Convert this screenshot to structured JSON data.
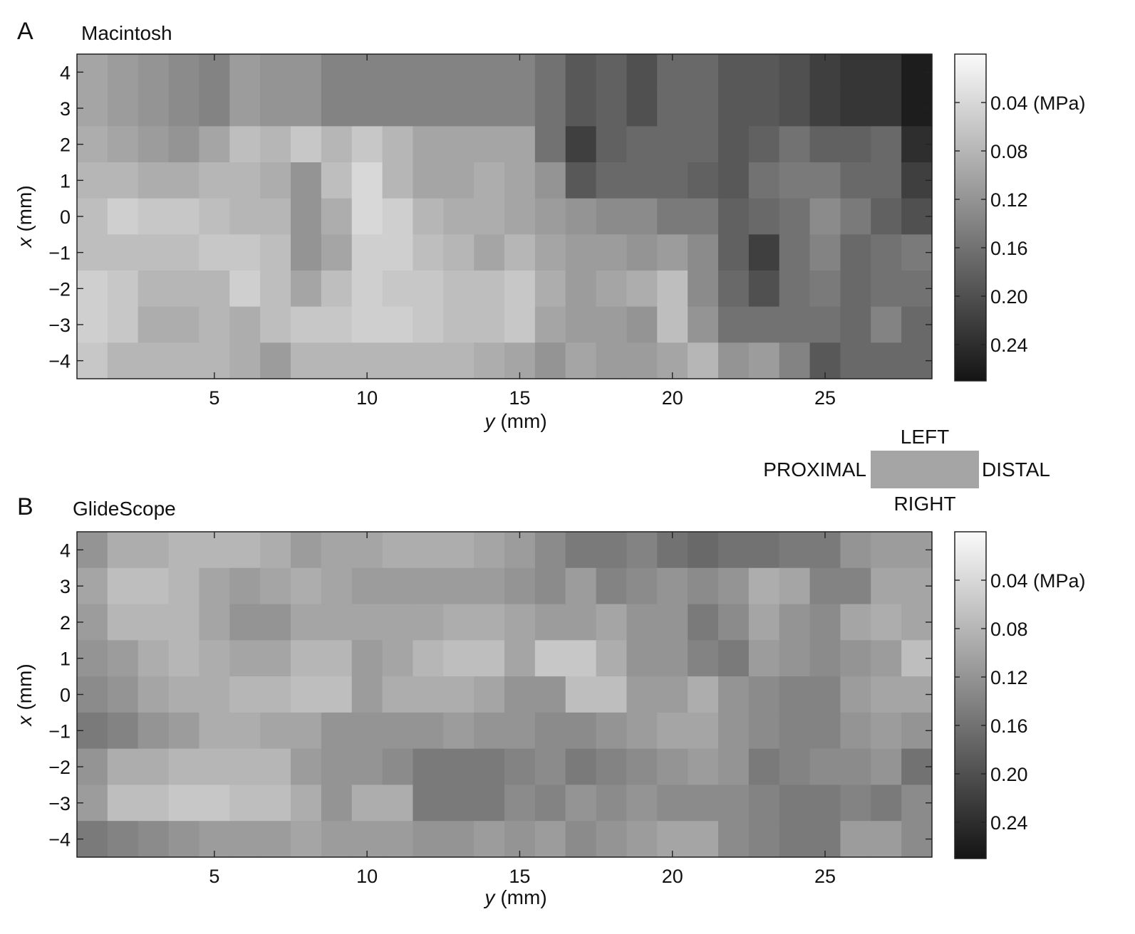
{
  "chart_data": [
    {
      "type": "heatmap",
      "panel": "A",
      "title": "Macintosh",
      "xlabel_var": "y",
      "xlabel_unit": "(mm)",
      "ylabel_var": "x",
      "ylabel_unit": "(mm)",
      "xlim": [
        0.5,
        28.5
      ],
      "ylim": [
        -4.5,
        4.5
      ],
      "x_ticks": [
        5,
        10,
        15,
        20,
        25
      ],
      "y_ticks": [
        4,
        3,
        2,
        1,
        0,
        -1,
        -2,
        -3,
        -4
      ],
      "y_tick_labels": [
        "4",
        "3",
        "2",
        "1",
        "0",
        "−1",
        "−2",
        "−3",
        "−4"
      ],
      "x_tick_labels": [
        "5",
        "10",
        "15",
        "20",
        "25"
      ],
      "colorbar": {
        "range": [
          0.0,
          0.27
        ],
        "ticks": [
          0.04,
          0.08,
          0.12,
          0.16,
          0.2,
          0.24
        ],
        "tick_labels": [
          "0.04 (MPa)",
          "0.08",
          "0.12",
          "0.16",
          "0.20",
          "0.24"
        ],
        "colormap": "gray-reversed"
      },
      "rows_x": [
        4,
        3,
        2,
        1,
        0,
        -1,
        -2,
        -3,
        -4
      ],
      "cols_y": [
        1,
        2,
        3,
        4,
        5,
        6,
        7,
        8,
        9,
        10,
        11,
        12,
        13,
        14,
        15,
        16,
        17,
        18,
        19,
        20,
        21,
        22,
        23,
        24,
        25,
        26,
        27,
        28
      ],
      "values": [
        [
          0.1,
          0.11,
          0.12,
          0.13,
          0.14,
          0.11,
          0.12,
          0.12,
          0.14,
          0.14,
          0.14,
          0.14,
          0.14,
          0.14,
          0.14,
          0.16,
          0.19,
          0.18,
          0.2,
          0.17,
          0.17,
          0.19,
          0.19,
          0.2,
          0.22,
          0.23,
          0.23,
          0.26
        ],
        [
          0.1,
          0.11,
          0.12,
          0.13,
          0.14,
          0.11,
          0.12,
          0.12,
          0.14,
          0.14,
          0.14,
          0.14,
          0.14,
          0.14,
          0.14,
          0.16,
          0.19,
          0.18,
          0.2,
          0.17,
          0.17,
          0.19,
          0.19,
          0.2,
          0.22,
          0.23,
          0.23,
          0.26
        ],
        [
          0.09,
          0.1,
          0.11,
          0.12,
          0.1,
          0.07,
          0.08,
          0.06,
          0.08,
          0.06,
          0.08,
          0.1,
          0.1,
          0.1,
          0.1,
          0.16,
          0.22,
          0.18,
          0.17,
          0.17,
          0.17,
          0.19,
          0.18,
          0.16,
          0.18,
          0.18,
          0.17,
          0.24
        ],
        [
          0.08,
          0.08,
          0.09,
          0.09,
          0.08,
          0.08,
          0.09,
          0.12,
          0.07,
          0.04,
          0.08,
          0.1,
          0.1,
          0.09,
          0.1,
          0.12,
          0.19,
          0.17,
          0.17,
          0.17,
          0.18,
          0.19,
          0.16,
          0.15,
          0.15,
          0.17,
          0.17,
          0.22
        ],
        [
          0.07,
          0.05,
          0.06,
          0.06,
          0.07,
          0.08,
          0.08,
          0.12,
          0.09,
          0.04,
          0.05,
          0.08,
          0.09,
          0.09,
          0.1,
          0.11,
          0.12,
          0.13,
          0.13,
          0.15,
          0.15,
          0.18,
          0.17,
          0.16,
          0.13,
          0.15,
          0.18,
          0.2
        ],
        [
          0.07,
          0.07,
          0.07,
          0.07,
          0.06,
          0.06,
          0.07,
          0.12,
          0.1,
          0.05,
          0.05,
          0.07,
          0.08,
          0.1,
          0.08,
          0.1,
          0.11,
          0.11,
          0.12,
          0.11,
          0.13,
          0.18,
          0.22,
          0.16,
          0.14,
          0.17,
          0.16,
          0.15
        ],
        [
          0.05,
          0.06,
          0.08,
          0.08,
          0.08,
          0.05,
          0.07,
          0.1,
          0.07,
          0.05,
          0.06,
          0.06,
          0.07,
          0.07,
          0.06,
          0.09,
          0.11,
          0.1,
          0.09,
          0.07,
          0.13,
          0.17,
          0.2,
          0.16,
          0.15,
          0.17,
          0.16,
          0.16
        ],
        [
          0.05,
          0.06,
          0.09,
          0.09,
          0.08,
          0.09,
          0.07,
          0.06,
          0.06,
          0.05,
          0.05,
          0.06,
          0.07,
          0.07,
          0.06,
          0.1,
          0.11,
          0.11,
          0.12,
          0.07,
          0.12,
          0.16,
          0.16,
          0.16,
          0.16,
          0.17,
          0.14,
          0.17
        ],
        [
          0.06,
          0.08,
          0.08,
          0.08,
          0.08,
          0.09,
          0.11,
          0.08,
          0.08,
          0.08,
          0.08,
          0.08,
          0.08,
          0.09,
          0.1,
          0.12,
          0.1,
          0.11,
          0.11,
          0.1,
          0.08,
          0.12,
          0.11,
          0.14,
          0.19,
          0.17,
          0.17,
          0.17
        ]
      ]
    },
    {
      "type": "heatmap",
      "panel": "B",
      "title": "GlideScope",
      "xlabel_var": "y",
      "xlabel_unit": "(mm)",
      "ylabel_var": "x",
      "ylabel_unit": "(mm)",
      "xlim": [
        0.5,
        28.5
      ],
      "ylim": [
        -4.5,
        4.5
      ],
      "x_ticks": [
        5,
        10,
        15,
        20,
        25
      ],
      "y_ticks": [
        4,
        3,
        2,
        1,
        0,
        -1,
        -2,
        -3,
        -4
      ],
      "y_tick_labels": [
        "4",
        "3",
        "2",
        "1",
        "0",
        "−1",
        "−2",
        "−3",
        "−4"
      ],
      "x_tick_labels": [
        "5",
        "10",
        "15",
        "20",
        "25"
      ],
      "colorbar": {
        "range": [
          0.0,
          0.27
        ],
        "ticks": [
          0.04,
          0.08,
          0.12,
          0.16,
          0.2,
          0.24
        ],
        "tick_labels": [
          "0.04 (MPa)",
          "0.08",
          "0.12",
          "0.16",
          "0.20",
          "0.24"
        ],
        "colormap": "gray-reversed"
      },
      "rows_x": [
        4,
        3,
        2,
        1,
        0,
        -1,
        -2,
        -3,
        -4
      ],
      "cols_y": [
        1,
        2,
        3,
        4,
        5,
        6,
        7,
        8,
        9,
        10,
        11,
        12,
        13,
        14,
        15,
        16,
        17,
        18,
        19,
        20,
        21,
        22,
        23,
        24,
        25,
        26,
        27,
        28
      ],
      "values": [
        [
          0.12,
          0.09,
          0.09,
          0.08,
          0.08,
          0.08,
          0.09,
          0.11,
          0.1,
          0.1,
          0.09,
          0.09,
          0.09,
          0.1,
          0.11,
          0.13,
          0.15,
          0.15,
          0.14,
          0.16,
          0.17,
          0.16,
          0.16,
          0.15,
          0.15,
          0.12,
          0.11,
          0.11
        ],
        [
          0.1,
          0.07,
          0.07,
          0.08,
          0.1,
          0.11,
          0.1,
          0.09,
          0.1,
          0.11,
          0.11,
          0.11,
          0.11,
          0.11,
          0.12,
          0.13,
          0.11,
          0.14,
          0.13,
          0.12,
          0.13,
          0.12,
          0.09,
          0.1,
          0.14,
          0.14,
          0.1,
          0.1
        ],
        [
          0.11,
          0.08,
          0.08,
          0.08,
          0.1,
          0.12,
          0.12,
          0.1,
          0.1,
          0.1,
          0.1,
          0.1,
          0.09,
          0.09,
          0.1,
          0.11,
          0.11,
          0.1,
          0.12,
          0.12,
          0.15,
          0.13,
          0.1,
          0.12,
          0.13,
          0.1,
          0.09,
          0.1
        ],
        [
          0.12,
          0.11,
          0.09,
          0.08,
          0.09,
          0.1,
          0.1,
          0.08,
          0.08,
          0.11,
          0.1,
          0.08,
          0.07,
          0.07,
          0.1,
          0.06,
          0.06,
          0.09,
          0.12,
          0.12,
          0.14,
          0.15,
          0.11,
          0.12,
          0.13,
          0.12,
          0.11,
          0.07
        ],
        [
          0.13,
          0.12,
          0.1,
          0.09,
          0.09,
          0.08,
          0.08,
          0.07,
          0.07,
          0.11,
          0.09,
          0.09,
          0.09,
          0.1,
          0.12,
          0.12,
          0.07,
          0.07,
          0.11,
          0.11,
          0.09,
          0.12,
          0.13,
          0.14,
          0.14,
          0.11,
          0.1,
          0.1
        ],
        [
          0.15,
          0.14,
          0.12,
          0.11,
          0.09,
          0.09,
          0.1,
          0.1,
          0.12,
          0.12,
          0.12,
          0.12,
          0.11,
          0.12,
          0.12,
          0.13,
          0.13,
          0.12,
          0.11,
          0.1,
          0.1,
          0.12,
          0.13,
          0.14,
          0.14,
          0.12,
          0.11,
          0.12
        ],
        [
          0.12,
          0.09,
          0.09,
          0.08,
          0.08,
          0.08,
          0.08,
          0.11,
          0.12,
          0.12,
          0.13,
          0.15,
          0.15,
          0.15,
          0.14,
          0.13,
          0.15,
          0.14,
          0.13,
          0.12,
          0.11,
          0.12,
          0.15,
          0.14,
          0.13,
          0.13,
          0.12,
          0.16
        ],
        [
          0.11,
          0.07,
          0.07,
          0.06,
          0.06,
          0.07,
          0.07,
          0.09,
          0.12,
          0.09,
          0.09,
          0.15,
          0.15,
          0.15,
          0.13,
          0.14,
          0.12,
          0.13,
          0.12,
          0.13,
          0.13,
          0.13,
          0.14,
          0.15,
          0.15,
          0.14,
          0.15,
          0.13
        ],
        [
          0.15,
          0.14,
          0.13,
          0.12,
          0.11,
          0.11,
          0.11,
          0.1,
          0.11,
          0.11,
          0.11,
          0.12,
          0.12,
          0.11,
          0.12,
          0.11,
          0.13,
          0.12,
          0.11,
          0.1,
          0.1,
          0.13,
          0.14,
          0.15,
          0.15,
          0.11,
          0.11,
          0.13
        ]
      ]
    }
  ],
  "orientation_key": {
    "top": "LEFT",
    "left": "PROXIMAL",
    "right": "DISTAL",
    "bottom": "RIGHT",
    "box_color": "#a5a5a5"
  }
}
